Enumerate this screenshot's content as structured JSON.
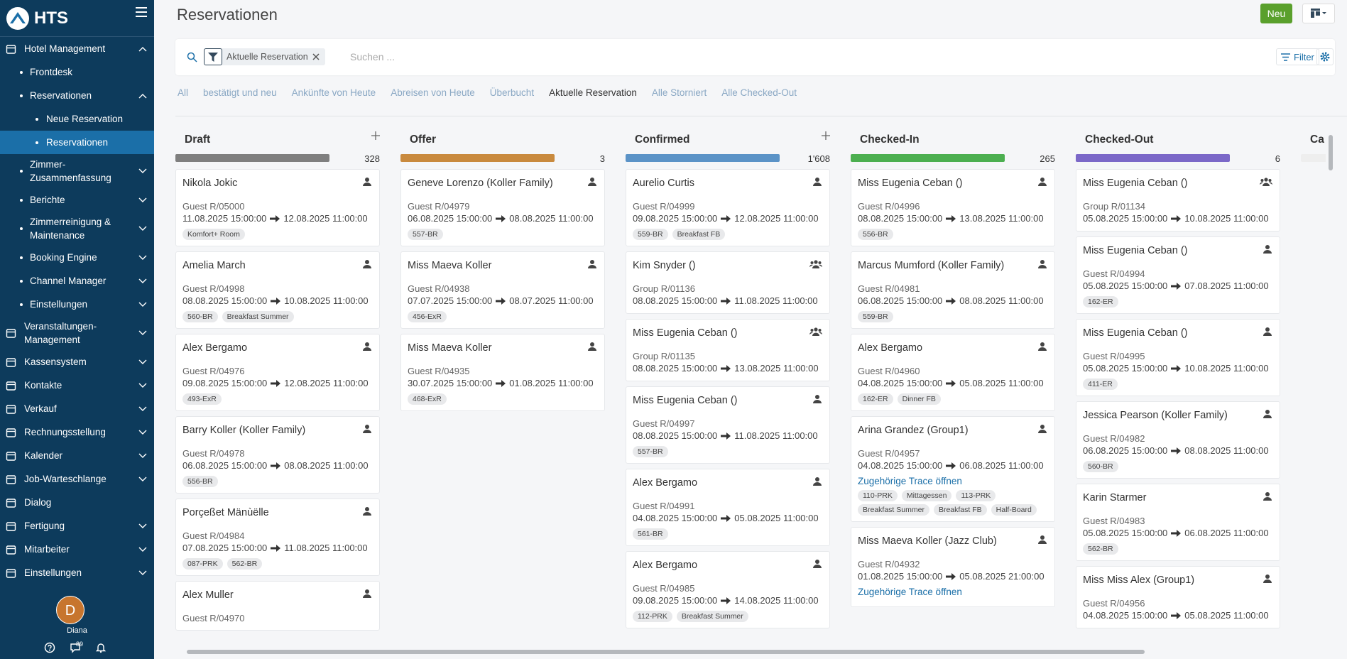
{
  "sidebar": {
    "logo": "HTS",
    "nav": [
      {
        "label": "Hotel Management",
        "level": 0,
        "expand": "open"
      },
      {
        "label": "Frontdesk",
        "level": 1
      },
      {
        "label": "Reservationen",
        "level": 1,
        "expand": "open"
      },
      {
        "label": "Neue Reservation",
        "level": 2
      },
      {
        "label": "Reservationen",
        "level": 2,
        "active": true
      },
      {
        "label": "Zimmer-Zusammenfassung",
        "level": 1,
        "expand": "closed"
      },
      {
        "label": "Berichte",
        "level": 1,
        "expand": "closed"
      },
      {
        "label": "Zimmerreinigung & Maintenance",
        "level": 1,
        "expand": "closed"
      },
      {
        "label": "Booking Engine",
        "level": 1,
        "expand": "closed"
      },
      {
        "label": "Channel Manager",
        "level": 1,
        "expand": "closed"
      },
      {
        "label": "Einstellungen",
        "level": 1,
        "expand": "closed"
      },
      {
        "label": "Veranstaltungen-Management",
        "level": 0,
        "expand": "closed"
      },
      {
        "label": "Kassensystem",
        "level": 0,
        "expand": "closed"
      },
      {
        "label": "Kontakte",
        "level": 0,
        "expand": "closed"
      },
      {
        "label": "Verkauf",
        "level": 0,
        "expand": "closed"
      },
      {
        "label": "Rechnungsstellung",
        "level": 0,
        "expand": "closed"
      },
      {
        "label": "Kalender",
        "level": 0,
        "expand": "closed"
      },
      {
        "label": "Job-Warteschlange",
        "level": 0,
        "expand": "closed"
      },
      {
        "label": "Dialog",
        "level": 0
      },
      {
        "label": "Fertigung",
        "level": 0,
        "expand": "closed"
      },
      {
        "label": "Mitarbeiter",
        "level": 0,
        "expand": "closed"
      },
      {
        "label": "Einstellungen",
        "level": 0,
        "expand": "closed"
      }
    ],
    "user": {
      "initial": "D",
      "name": "Diana",
      "messages": "89"
    }
  },
  "header": {
    "title": "Reservationen",
    "new_button": "Neu"
  },
  "search": {
    "filter_chip": "Aktuelle Reservation",
    "placeholder": "Suchen ...",
    "filter_button": "Filter"
  },
  "tabs": {
    "items": [
      "All",
      "bestätigt und neu",
      "Ankünfte von Heute",
      "Abreisen von Heute",
      "Überbucht",
      "Aktuelle Reservation",
      "Alle Storniert",
      "Alle Checked-Out"
    ],
    "active": 5
  },
  "columns": [
    {
      "title": "Draft",
      "count": "328",
      "color": "#7f7f7f",
      "add": true,
      "cards": [
        {
          "name": "Nikola Jokic",
          "ref": "Guest R/05000",
          "start": "11.08.2025 15:00:00",
          "end": "12.08.2025 11:00:00",
          "icon": "person",
          "tags": [
            "Komfort+ Room"
          ]
        },
        {
          "name": "Amelia March",
          "ref": "Guest R/04998",
          "start": "08.08.2025 15:00:00",
          "end": "10.08.2025 11:00:00",
          "icon": "person",
          "tags": [
            "560-BR",
            "Breakfast Summer"
          ]
        },
        {
          "name": "Alex Bergamo",
          "ref": "Guest R/04976",
          "start": "09.08.2025 15:00:00",
          "end": "12.08.2025 11:00:00",
          "icon": "person",
          "tags": [
            "493-ExR"
          ]
        },
        {
          "name": "Barry Koller (Koller Family)",
          "ref": "Guest R/04978",
          "start": "06.08.2025 15:00:00",
          "end": "08.08.2025 11:00:00",
          "icon": "person",
          "tags": [
            "556-BR"
          ]
        },
        {
          "name": "Porçeßet Mänùëlle",
          "ref": "Guest R/04984",
          "start": "07.08.2025 15:00:00",
          "end": "11.08.2025 11:00:00",
          "icon": "person",
          "tags": [
            "087-PRK",
            "562-BR"
          ]
        },
        {
          "name": "Alex Muller",
          "ref": "Guest R/04970",
          "icon": "person"
        }
      ]
    },
    {
      "title": "Offer",
      "count": "3",
      "color": "#c98a3e",
      "cards": [
        {
          "name": "Geneve Lorenzo (Koller Family)",
          "ref": "Guest R/04979",
          "start": "06.08.2025 15:00:00",
          "end": "08.08.2025 11:00:00",
          "icon": "person",
          "tags": [
            "557-BR"
          ]
        },
        {
          "name": "Miss Maeva Koller",
          "ref": "Guest R/04938",
          "start": "07.07.2025 15:00:00",
          "end": "08.07.2025 11:00:00",
          "icon": "person",
          "tags": [
            "456-ExR"
          ]
        },
        {
          "name": "Miss Maeva Koller",
          "ref": "Guest R/04935",
          "start": "30.07.2025 15:00:00",
          "end": "01.08.2025 11:00:00",
          "icon": "person",
          "tags": [
            "468-ExR"
          ]
        }
      ]
    },
    {
      "title": "Confirmed",
      "count": "1'608",
      "color": "#5b93c7",
      "add": true,
      "cards": [
        {
          "name": "Aurelio Curtis",
          "ref": "Guest R/04999",
          "start": "09.08.2025 15:00:00",
          "end": "12.08.2025 11:00:00",
          "icon": "person",
          "tags": [
            "559-BR",
            "Breakfast FB"
          ]
        },
        {
          "name": "Kim Snyder ()",
          "ref": "Group R/01136",
          "start": "08.08.2025 15:00:00",
          "end": "11.08.2025 11:00:00",
          "icon": "group"
        },
        {
          "name": "Miss Eugenia Ceban ()",
          "ref": "Group R/01135",
          "start": "08.08.2025 15:00:00",
          "end": "13.08.2025 11:00:00",
          "icon": "group"
        },
        {
          "name": "Miss Eugenia Ceban ()",
          "ref": "Guest R/04997",
          "start": "08.08.2025 15:00:00",
          "end": "11.08.2025 11:00:00",
          "icon": "person",
          "tags": [
            "557-BR"
          ]
        },
        {
          "name": "Alex Bergamo",
          "ref": "Guest R/04991",
          "start": "04.08.2025 15:00:00",
          "end": "05.08.2025 11:00:00",
          "icon": "person",
          "tags": [
            "561-BR"
          ]
        },
        {
          "name": "Alex Bergamo",
          "ref": "Guest R/04985",
          "start": "09.08.2025 15:00:00",
          "end": "14.08.2025 11:00:00",
          "icon": "person",
          "tags": [
            "112-PRK",
            "Breakfast Summer"
          ]
        }
      ]
    },
    {
      "title": "Checked-In",
      "count": "265",
      "color": "#4caf50",
      "cards": [
        {
          "name": "Miss Eugenia Ceban ()",
          "ref": "Guest R/04996",
          "start": "08.08.2025 15:00:00",
          "end": "13.08.2025 11:00:00",
          "icon": "person",
          "tags": [
            "556-BR"
          ]
        },
        {
          "name": "Marcus Mumford (Koller Family)",
          "ref": "Guest R/04981",
          "start": "06.08.2025 15:00:00",
          "end": "08.08.2025 11:00:00",
          "icon": "person",
          "tags": [
            "559-BR"
          ]
        },
        {
          "name": "Alex Bergamo",
          "ref": "Guest R/04960",
          "start": "04.08.2025 15:00:00",
          "end": "05.08.2025 11:00:00",
          "icon": "person",
          "tags": [
            "162-ER",
            "Dinner FB"
          ]
        },
        {
          "name": "Arina Grandez (Group1)",
          "ref": "Guest R/04957",
          "start": "04.08.2025 15:00:00",
          "end": "06.08.2025 11:00:00",
          "icon": "person",
          "link": "Zugehörige Trace öffnen",
          "tags": [
            "110-PRK",
            "Mittagessen",
            "113-PRK",
            "Breakfast Summer",
            "Breakfast FB",
            "Half-Board"
          ]
        },
        {
          "name": "Miss Maeva Koller (Jazz Club)",
          "ref": "Guest R/04932",
          "start": "01.08.2025 15:00:00",
          "end": "05.08.2025 21:00:00",
          "icon": "person",
          "link": "Zugehörige Trace öffnen"
        }
      ]
    },
    {
      "title": "Checked-Out",
      "count": "6",
      "color": "#7b68c8",
      "cards": [
        {
          "name": "Miss Eugenia Ceban ()",
          "ref": "Group R/01134",
          "start": "05.08.2025 15:00:00",
          "end": "10.08.2025 11:00:00",
          "icon": "group"
        },
        {
          "name": "Miss Eugenia Ceban ()",
          "ref": "Guest R/04994",
          "start": "05.08.2025 15:00:00",
          "end": "07.08.2025 11:00:00",
          "icon": "person",
          "tags": [
            "162-ER"
          ]
        },
        {
          "name": "Miss Eugenia Ceban ()",
          "ref": "Guest R/04995",
          "start": "05.08.2025 15:00:00",
          "end": "10.08.2025 11:00:00",
          "icon": "person",
          "tags": [
            "411-ER"
          ]
        },
        {
          "name": "Jessica Pearson (Koller Family)",
          "ref": "Guest R/04982",
          "start": "06.08.2025 15:00:00",
          "end": "08.08.2025 11:00:00",
          "icon": "person",
          "tags": [
            "560-BR"
          ]
        },
        {
          "name": "Karin Starmer",
          "ref": "Guest R/04983",
          "start": "05.08.2025 15:00:00",
          "end": "06.08.2025 11:00:00",
          "icon": "person",
          "tags": [
            "562-BR"
          ]
        },
        {
          "name": "Miss Miss Alex (Group1)",
          "ref": "Guest R/04956",
          "start": "04.08.2025 15:00:00",
          "end": "05.08.2025 11:00:00",
          "icon": "person"
        }
      ]
    },
    {
      "title": "Ca",
      "color": "#eeeeee",
      "cards": []
    }
  ]
}
